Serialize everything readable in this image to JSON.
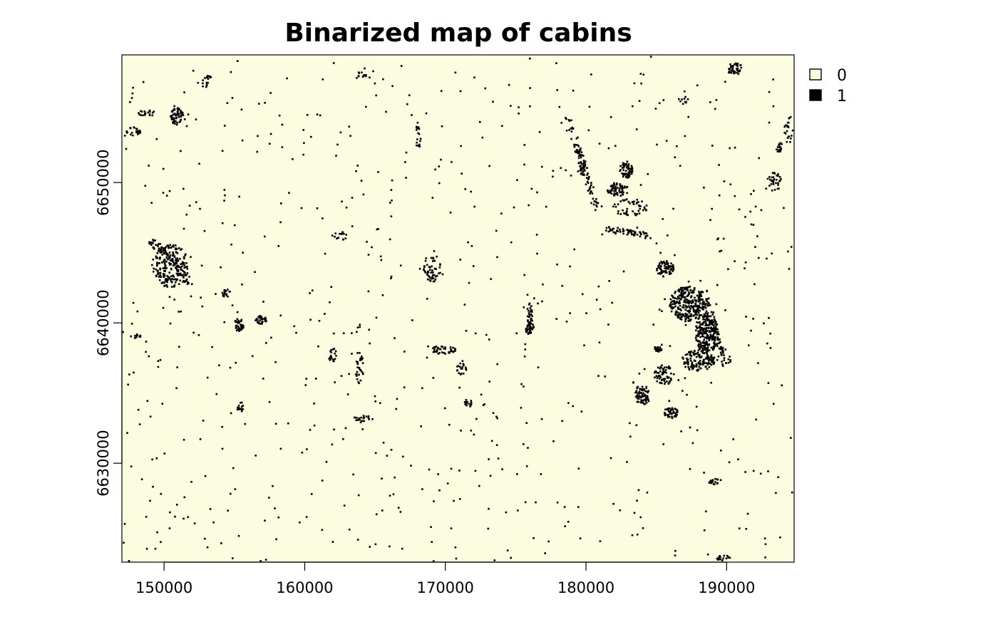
{
  "map": {
    "title": "Binarized map of cabins",
    "background_color": "#fcfde0",
    "presence_color": "#000000",
    "x_ticks": [
      150000,
      160000,
      170000,
      180000,
      190000
    ],
    "y_ticks": [
      6630000,
      6640000,
      6650000
    ],
    "x_range": [
      147000,
      194800
    ],
    "y_range": [
      6622950,
      6659100
    ],
    "legend": [
      {
        "label": "0",
        "fill": "#fcfde0"
      },
      {
        "label": "1",
        "fill": "#000000"
      }
    ]
  }
}
